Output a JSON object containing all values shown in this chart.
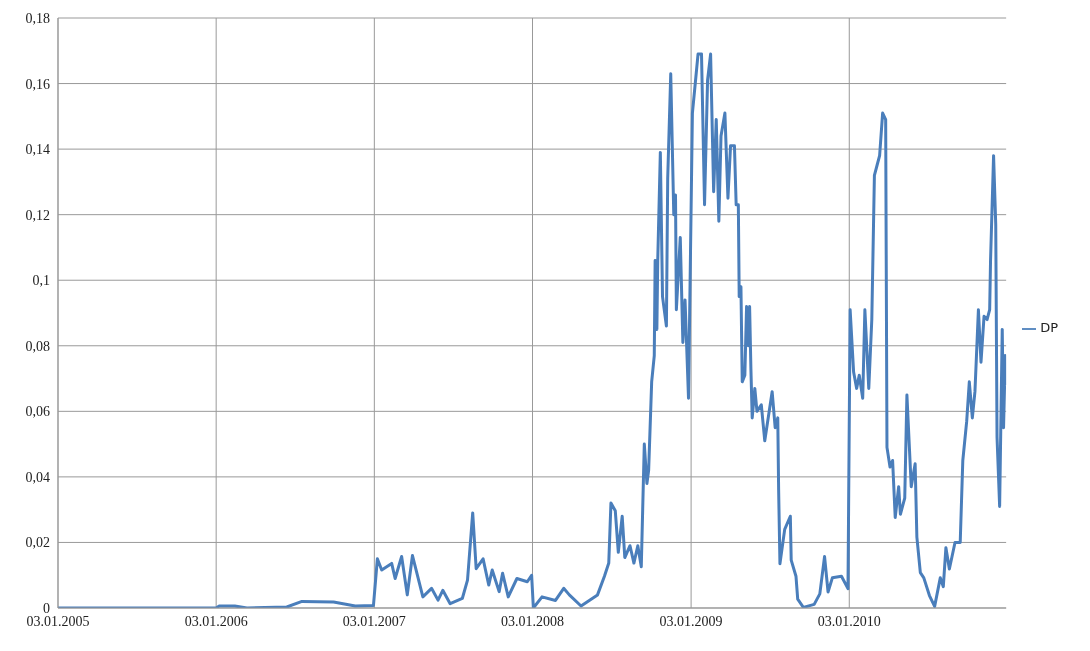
{
  "chart_data": {
    "type": "line",
    "legend": "right",
    "grid": true,
    "marker": "none",
    "line_style": "solid",
    "xlim": [
      "2005-01-03",
      "2010-12-31"
    ],
    "xticks": [
      {
        "value": "2005-01-03",
        "label": "03.01.2005"
      },
      {
        "value": "2006-01-03",
        "label": "03.01.2006"
      },
      {
        "value": "2007-01-03",
        "label": "03.01.2007"
      },
      {
        "value": "2008-01-03",
        "label": "03.01.2008"
      },
      {
        "value": "2009-01-03",
        "label": "03.01.2009"
      },
      {
        "value": "2010-01-03",
        "label": "03.01.2010"
      }
    ],
    "ylim": [
      0,
      0.18
    ],
    "yticks": [
      0,
      {
        "value": 0.02,
        "label": "0,02"
      },
      {
        "value": 0.04,
        "label": "0,04"
      },
      {
        "value": 0.06,
        "label": "0,06"
      },
      {
        "value": 0.08,
        "label": "0,08"
      },
      {
        "value": 0.1,
        "label": "0,1"
      },
      {
        "value": 0.12,
        "label": "0,12"
      },
      {
        "value": 0.14,
        "label": "0,14"
      },
      {
        "value": 0.16,
        "label": "0,16"
      },
      {
        "value": 0.18,
        "label": "0,18"
      }
    ],
    "x": [
      "2005-01-03",
      "2006-01-03",
      "2006-01-10",
      "2006-02-15",
      "2006-03-15",
      "2006-06-15",
      "2006-07-20",
      "2006-10-01",
      "2006-11-20",
      "2007-01-01",
      "2007-01-10",
      "2007-01-20",
      "2007-02-12",
      "2007-02-20",
      "2007-03-07",
      "2007-03-20",
      "2007-04-01",
      "2007-04-25",
      "2007-05-15",
      "2007-05-30",
      "2007-06-10",
      "2007-06-27",
      "2007-07-25",
      "2007-08-06",
      "2007-08-18",
      "2007-08-26",
      "2007-09-11",
      "2007-09-24",
      "2007-10-02",
      "2007-10-18",
      "2007-10-26",
      "2007-11-08",
      "2007-11-28",
      "2007-12-22",
      "2008-01-01",
      "2008-01-05",
      "2008-01-25",
      "2008-02-25",
      "2008-03-15",
      "2008-03-28",
      "2008-04-24",
      "2008-06-01",
      "2008-06-17",
      "2008-06-27",
      "2008-07-02",
      "2008-07-12",
      "2008-07-19",
      "2008-07-28",
      "2008-08-03",
      "2008-08-15",
      "2008-08-24",
      "2008-09-02",
      "2008-09-10",
      "2008-09-17",
      "2008-09-23",
      "2008-09-27",
      "2008-10-04",
      "2008-10-10",
      "2008-10-12",
      "2008-10-16",
      "2008-10-18",
      "2008-10-24",
      "2008-10-29",
      "2008-11-07",
      "2008-11-10",
      "2008-11-17",
      "2008-11-24",
      "2008-11-28",
      "2008-11-30",
      "2008-12-09",
      "2008-12-15",
      "2008-12-20",
      "2008-12-28",
      "2009-01-06",
      "2009-01-14",
      "2009-01-19",
      "2009-01-27",
      "2009-02-03",
      "2009-02-10",
      "2009-02-17",
      "2009-02-24",
      "2009-03-02",
      "2009-03-08",
      "2009-03-13",
      "2009-03-22",
      "2009-03-29",
      "2009-04-04",
      "2009-04-13",
      "2009-04-17",
      "2009-04-22",
      "2009-04-24",
      "2009-04-28",
      "2009-05-01",
      "2009-05-07",
      "2009-05-11",
      "2009-05-15",
      "2009-05-18",
      "2009-05-21",
      "2009-05-24",
      "2009-05-30",
      "2009-06-04",
      "2009-06-14",
      "2009-06-22",
      "2009-07-09",
      "2009-07-16",
      "2009-07-22",
      "2009-07-24",
      "2009-07-27",
      "2009-08-07",
      "2009-08-20",
      "2009-08-22",
      "2009-09-02",
      "2009-09-06",
      "2009-09-19",
      "2009-10-14",
      "2009-10-27",
      "2009-11-07",
      "2009-11-15",
      "2009-11-25",
      "2009-12-16",
      "2009-12-31",
      "2010-01-05",
      "2010-01-13",
      "2010-01-20",
      "2010-01-26",
      "2010-02-03",
      "2010-02-08",
      "2010-02-17",
      "2010-02-24",
      "2010-03-02",
      "2010-03-08",
      "2010-03-14",
      "2010-03-21",
      "2010-03-28",
      "2010-03-31",
      "2010-04-07",
      "2010-04-13",
      "2010-04-19",
      "2010-04-27",
      "2010-05-01",
      "2010-05-11",
      "2010-05-16",
      "2010-05-26",
      "2010-06-04",
      "2010-06-08",
      "2010-06-16",
      "2010-06-24",
      "2010-07-07",
      "2010-07-19",
      "2010-08-01",
      "2010-08-08",
      "2010-08-14",
      "2010-08-22",
      "2010-09-04",
      "2010-09-16",
      "2010-09-22",
      "2010-10-01",
      "2010-10-07",
      "2010-10-14",
      "2010-10-20",
      "2010-10-28",
      "2010-11-03",
      "2010-11-10",
      "2010-11-17",
      "2010-11-23",
      "2010-11-25",
      "2010-12-02",
      "2010-12-07",
      "2010-12-10",
      "2010-12-16",
      "2010-12-22",
      "2010-12-25",
      "2010-12-29",
      "2010-12-31"
    ],
    "series": [
      {
        "name": "DP",
        "color": "#4a7ebb",
        "values": [
          0,
          0,
          0.0006,
          0.0006,
          0,
          0.0003,
          0.002,
          0.0018,
          0.0006,
          0.0008,
          0.015,
          0.0116,
          0.0136,
          0.009,
          0.0157,
          0.004,
          0.016,
          0.0034,
          0.006,
          0.0024,
          0.0054,
          0.0013,
          0.0029,
          0.0085,
          0.029,
          0.012,
          0.015,
          0.007,
          0.0116,
          0.005,
          0.0106,
          0.0034,
          0.009,
          0.008,
          0.01,
          0,
          0.0034,
          0.0023,
          0.006,
          0.004,
          0.0006,
          0.004,
          0.0097,
          0.0137,
          0.032,
          0.0297,
          0.017,
          0.028,
          0.0154,
          0.019,
          0.0137,
          0.019,
          0.0126,
          0.05,
          0.038,
          0.042,
          0.069,
          0.077,
          0.106,
          0.085,
          0.106,
          0.139,
          0.095,
          0.086,
          0.131,
          0.163,
          0.12,
          0.126,
          0.091,
          0.113,
          0.081,
          0.094,
          0.064,
          0.151,
          0.162,
          0.169,
          0.169,
          0.123,
          0.161,
          0.169,
          0.127,
          0.149,
          0.118,
          0.144,
          0.151,
          0.125,
          0.141,
          0.141,
          0.123,
          0.123,
          0.095,
          0.098,
          0.069,
          0.071,
          0.092,
          0.08,
          0.092,
          0.073,
          0.058,
          0.067,
          0.06,
          0.062,
          0.051,
          0.066,
          0.055,
          0.058,
          0.036,
          0.0135,
          0.024,
          0.028,
          0.0146,
          0.0097,
          0.0027,
          0.0002,
          0.0011,
          0.0043,
          0.0157,
          0.0049,
          0.0092,
          0.0097,
          0.0059,
          0.091,
          0.072,
          0.067,
          0.071,
          0.064,
          0.091,
          0.067,
          0.088,
          0.132,
          0.135,
          0.138,
          0.151,
          0.149,
          0.049,
          0.043,
          0.045,
          0.0276,
          0.037,
          0.0286,
          0.0335,
          0.065,
          0.037,
          0.044,
          0.0216,
          0.0108,
          0.0092,
          0.0038,
          0.0005,
          0.0092,
          0.0065,
          0.0184,
          0.0119,
          0.02,
          0.02,
          0.045,
          0.057,
          0.069,
          0.058,
          0.066,
          0.091,
          0.075,
          0.089,
          0.088,
          0.091,
          0.106,
          0.138,
          0.117,
          0.052,
          0.031,
          0.085,
          0.055,
          0.077,
          0.068
        ]
      }
    ]
  }
}
